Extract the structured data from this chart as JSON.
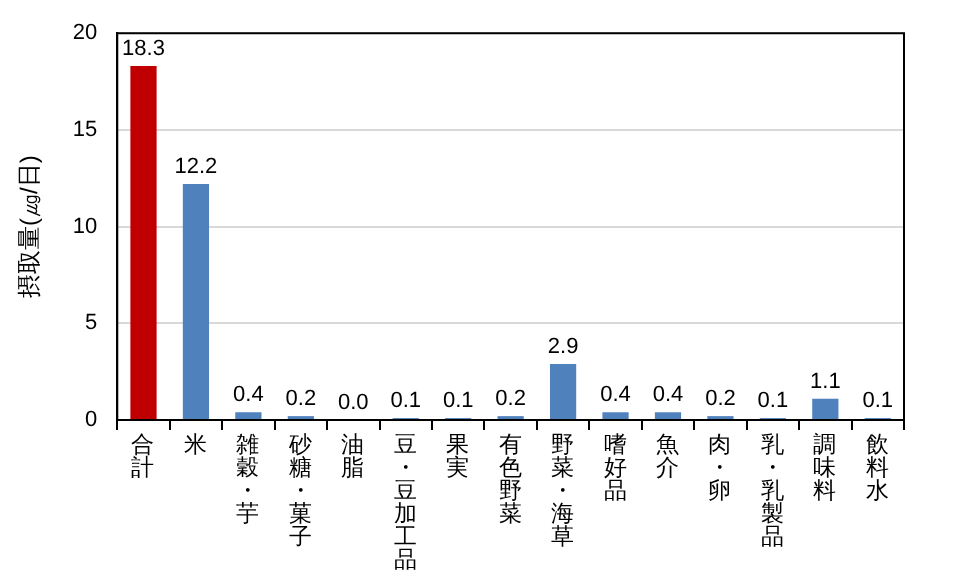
{
  "chart_data": {
    "type": "bar",
    "ylabel": "摂取量(㎍/日)",
    "categories": [
      "合計",
      "米",
      "雑穀・芋",
      "砂糖・菓子",
      "油脂",
      "豆・豆加工品",
      "果実",
      "有色野菜",
      "野菜・海草",
      "嗜好品",
      "魚介",
      "肉・卵",
      "乳・乳製品",
      "調味料",
      "飲料水"
    ],
    "values": [
      18.3,
      12.2,
      0.4,
      0.2,
      0.0,
      0.1,
      0.1,
      0.2,
      2.9,
      0.4,
      0.4,
      0.2,
      0.1,
      1.1,
      0.1
    ],
    "colors": [
      "#c00000",
      "#4f81bd",
      "#4f81bd",
      "#4f81bd",
      "#4f81bd",
      "#4f81bd",
      "#4f81bd",
      "#4f81bd",
      "#4f81bd",
      "#4f81bd",
      "#4f81bd",
      "#4f81bd",
      "#4f81bd",
      "#4f81bd",
      "#4f81bd"
    ],
    "ylim": [
      0,
      20
    ],
    "yticks": [
      0,
      5,
      10,
      15,
      20
    ],
    "value_labels": [
      "18.3",
      "12.2",
      "0.4",
      "0.2",
      "0.0",
      "0.1",
      "0.1",
      "0.2",
      "2.9",
      "0.4",
      "0.4",
      "0.2",
      "0.1",
      "1.1",
      "0.1"
    ],
    "grid": "y",
    "legend": false
  }
}
